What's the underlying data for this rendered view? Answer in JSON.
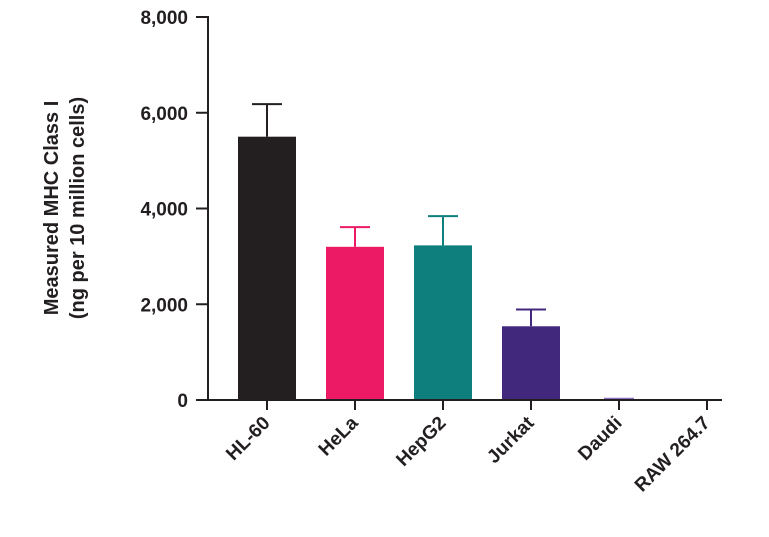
{
  "chart_data": {
    "type": "bar",
    "categories": [
      "HL-60",
      "HeLa",
      "HepG2",
      "Jurkat",
      "Daudi",
      "RAW 264.7"
    ],
    "values": [
      5500,
      3200,
      3230,
      1540,
      20,
      0
    ],
    "error_upper": [
      6180,
      3610,
      3840,
      1890,
      25,
      0
    ],
    "ylabel_line1": "Measured MHC Class I",
    "ylabel_line2": "(ng per 10 million cells)",
    "ylim": [
      0,
      8000
    ],
    "yticks": [
      0,
      2000,
      4000,
      6000,
      8000
    ],
    "ytick_labels": [
      "0",
      "2,000",
      "4,000",
      "6,000",
      "8,000"
    ],
    "colors": [
      "#231f20",
      "#ec1a65",
      "#0e7f7d",
      "#41287c",
      "#8b6fc1",
      "#231f20"
    ],
    "grid": false,
    "legend": "none"
  }
}
